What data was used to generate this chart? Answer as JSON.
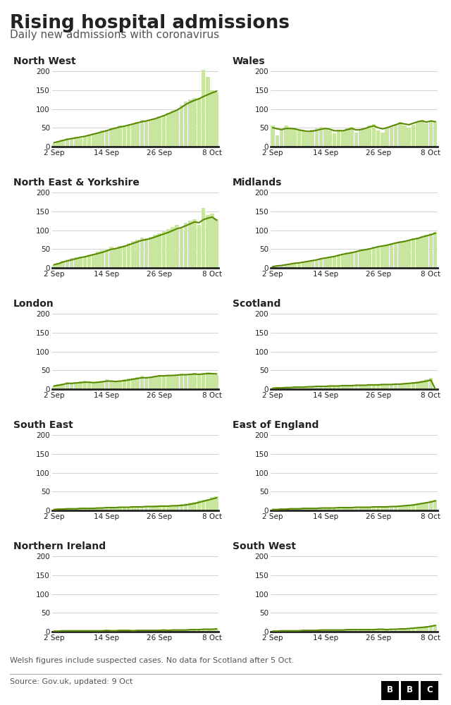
{
  "title": "Rising hospital admissions",
  "subtitle": "Daily new admissions with coronavirus",
  "footnote": "Welsh figures include suspected cases. No data for Scotland after 5 Oct.",
  "source": "Source: Gov.uk, updated: 9 Oct",
  "bar_color": "#c8e6a0",
  "line_color": "#5a8a00",
  "bg_color": "#ffffff",
  "grid_color": "#cccccc",
  "spine_color": "#222222",
  "text_color": "#222222",
  "subtitle_color": "#555555",
  "regions": [
    "North West",
    "Wales",
    "North East & Yorkshire",
    "Midlands",
    "London",
    "Scotland",
    "South East",
    "East of England",
    "Northern Ireland",
    "South West"
  ],
  "ylim": 210,
  "yticks": [
    0,
    50,
    100,
    150,
    200
  ],
  "xtick_labels": [
    "2 Sep",
    "14 Sep",
    "26 Sep",
    "8 Oct"
  ],
  "xtick_positions": [
    0,
    12,
    24,
    36
  ],
  "num_days": 38,
  "data": {
    "North West": {
      "bars": [
        8,
        15,
        18,
        22,
        20,
        25,
        23,
        28,
        30,
        35,
        38,
        42,
        45,
        50,
        48,
        55,
        52,
        58,
        60,
        65,
        70,
        68,
        72,
        75,
        80,
        85,
        90,
        95,
        100,
        110,
        120,
        125,
        130,
        130,
        205,
        185,
        150,
        145
      ],
      "line": [
        10,
        13,
        16,
        19,
        21,
        23,
        25,
        27,
        30,
        33,
        36,
        39,
        42,
        46,
        49,
        52,
        54,
        57,
        60,
        63,
        66,
        68,
        71,
        74,
        78,
        82,
        87,
        92,
        97,
        104,
        112,
        118,
        123,
        127,
        133,
        138,
        143,
        147
      ]
    },
    "Wales": {
      "bars": [
        55,
        30,
        45,
        55,
        50,
        48,
        42,
        40,
        38,
        44,
        48,
        52,
        50,
        42,
        35,
        45,
        42,
        48,
        52,
        38,
        45,
        50,
        55,
        60,
        42,
        38,
        50,
        55,
        60,
        65,
        55,
        50,
        58,
        65,
        70,
        62,
        68,
        65
      ],
      "line": [
        50,
        47,
        45,
        48,
        48,
        47,
        44,
        42,
        40,
        41,
        43,
        46,
        48,
        46,
        42,
        42,
        42,
        45,
        48,
        44,
        45,
        48,
        52,
        55,
        50,
        47,
        50,
        54,
        58,
        62,
        60,
        58,
        62,
        66,
        68,
        65,
        68,
        66
      ]
    },
    "North East & Yorkshire": {
      "bars": [
        8,
        12,
        18,
        22,
        25,
        28,
        30,
        32,
        35,
        38,
        42,
        46,
        50,
        55,
        52,
        58,
        60,
        65,
        70,
        75,
        80,
        78,
        82,
        88,
        92,
        98,
        103,
        108,
        115,
        105,
        120,
        125,
        130,
        115,
        160,
        140,
        145,
        130
      ],
      "line": [
        8,
        11,
        15,
        18,
        21,
        24,
        27,
        29,
        32,
        35,
        38,
        41,
        45,
        49,
        51,
        54,
        57,
        61,
        65,
        69,
        73,
        75,
        78,
        82,
        86,
        90,
        94,
        99,
        104,
        107,
        112,
        117,
        122,
        120,
        128,
        132,
        135,
        127
      ]
    },
    "Midlands": {
      "bars": [
        3,
        5,
        7,
        9,
        10,
        12,
        14,
        16,
        18,
        20,
        22,
        25,
        28,
        30,
        32,
        35,
        38,
        40,
        42,
        45,
        48,
        50,
        52,
        55,
        58,
        60,
        62,
        65,
        68,
        70,
        72,
        75,
        78,
        80,
        85,
        88,
        92,
        95
      ],
      "line": [
        3,
        5,
        6,
        8,
        10,
        12,
        13,
        15,
        17,
        19,
        21,
        24,
        26,
        28,
        30,
        33,
        36,
        38,
        40,
        43,
        46,
        48,
        50,
        53,
        56,
        58,
        60,
        63,
        66,
        68,
        70,
        73,
        76,
        78,
        82,
        85,
        88,
        92
      ]
    },
    "London": {
      "bars": [
        8,
        12,
        15,
        18,
        16,
        18,
        20,
        22,
        18,
        16,
        20,
        22,
        25,
        20,
        18,
        22,
        25,
        28,
        30,
        32,
        35,
        30,
        32,
        35,
        38,
        35,
        38,
        35,
        38,
        40,
        38,
        40,
        42,
        38,
        42,
        45,
        40,
        38
      ],
      "line": [
        8,
        10,
        12,
        15,
        15,
        16,
        17,
        18,
        18,
        17,
        18,
        19,
        21,
        21,
        20,
        21,
        22,
        24,
        26,
        28,
        30,
        30,
        31,
        33,
        35,
        35,
        36,
        36,
        37,
        38,
        38,
        39,
        40,
        39,
        40,
        41,
        41,
        40
      ]
    },
    "Scotland": {
      "bars": [
        2,
        3,
        4,
        5,
        4,
        5,
        6,
        5,
        6,
        7,
        8,
        7,
        8,
        9,
        8,
        9,
        10,
        9,
        10,
        11,
        10,
        11,
        12,
        11,
        12,
        13,
        12,
        13,
        14,
        15,
        16,
        17,
        18,
        20,
        22,
        25,
        30,
        0
      ],
      "line": [
        2,
        3,
        3,
        4,
        4,
        5,
        5,
        5,
        6,
        6,
        7,
        7,
        7,
        8,
        8,
        8,
        9,
        9,
        9,
        10,
        10,
        10,
        11,
        11,
        11,
        12,
        12,
        12,
        13,
        13,
        14,
        15,
        16,
        17,
        19,
        21,
        24,
        0
      ]
    },
    "South East": {
      "bars": [
        2,
        3,
        4,
        4,
        5,
        4,
        5,
        5,
        6,
        5,
        6,
        7,
        8,
        7,
        8,
        8,
        9,
        9,
        10,
        10,
        10,
        11,
        11,
        12,
        11,
        12,
        12,
        13,
        14,
        16,
        18,
        20,
        22,
        26,
        28,
        30,
        35,
        38
      ],
      "line": [
        2,
        3,
        3,
        4,
        4,
        4,
        5,
        5,
        5,
        5,
        6,
        6,
        7,
        7,
        7,
        8,
        8,
        8,
        9,
        9,
        9,
        10,
        10,
        10,
        11,
        11,
        11,
        12,
        12,
        13,
        14,
        16,
        18,
        21,
        24,
        27,
        30,
        33
      ]
    },
    "East of England": {
      "bars": [
        2,
        3,
        3,
        4,
        4,
        4,
        5,
        5,
        5,
        6,
        5,
        6,
        6,
        6,
        7,
        7,
        7,
        8,
        8,
        8,
        9,
        8,
        9,
        9,
        10,
        9,
        10,
        10,
        11,
        12,
        13,
        14,
        16,
        18,
        20,
        22,
        25,
        28
      ],
      "line": [
        2,
        2,
        3,
        3,
        4,
        4,
        4,
        5,
        5,
        5,
        5,
        6,
        6,
        6,
        6,
        7,
        7,
        7,
        7,
        8,
        8,
        8,
        8,
        9,
        9,
        9,
        9,
        10,
        10,
        11,
        12,
        13,
        14,
        16,
        18,
        20,
        22,
        25
      ]
    },
    "Northern Ireland": {
      "bars": [
        1,
        1,
        2,
        2,
        2,
        2,
        3,
        2,
        2,
        3,
        2,
        3,
        3,
        2,
        3,
        3,
        3,
        3,
        2,
        3,
        4,
        3,
        4,
        3,
        4,
        4,
        3,
        4,
        5,
        4,
        5,
        6,
        5,
        6,
        7,
        6,
        7,
        8
      ],
      "line": [
        1,
        1,
        2,
        2,
        2,
        2,
        2,
        2,
        2,
        2,
        2,
        2,
        3,
        2,
        2,
        3,
        3,
        3,
        2,
        3,
        3,
        3,
        3,
        3,
        3,
        4,
        3,
        4,
        4,
        4,
        4,
        5,
        5,
        5,
        6,
        6,
        6,
        7
      ]
    },
    "South West": {
      "bars": [
        1,
        2,
        2,
        2,
        3,
        2,
        3,
        3,
        3,
        4,
        3,
        4,
        4,
        4,
        4,
        5,
        4,
        5,
        5,
        5,
        6,
        5,
        6,
        5,
        6,
        6,
        5,
        6,
        7,
        7,
        8,
        9,
        10,
        11,
        12,
        14,
        16,
        18
      ],
      "line": [
        1,
        1,
        2,
        2,
        2,
        2,
        2,
        3,
        3,
        3,
        3,
        4,
        4,
        4,
        4,
        4,
        4,
        5,
        5,
        5,
        5,
        5,
        5,
        5,
        6,
        6,
        5,
        6,
        6,
        7,
        7,
        8,
        9,
        10,
        11,
        12,
        14,
        16
      ]
    }
  }
}
